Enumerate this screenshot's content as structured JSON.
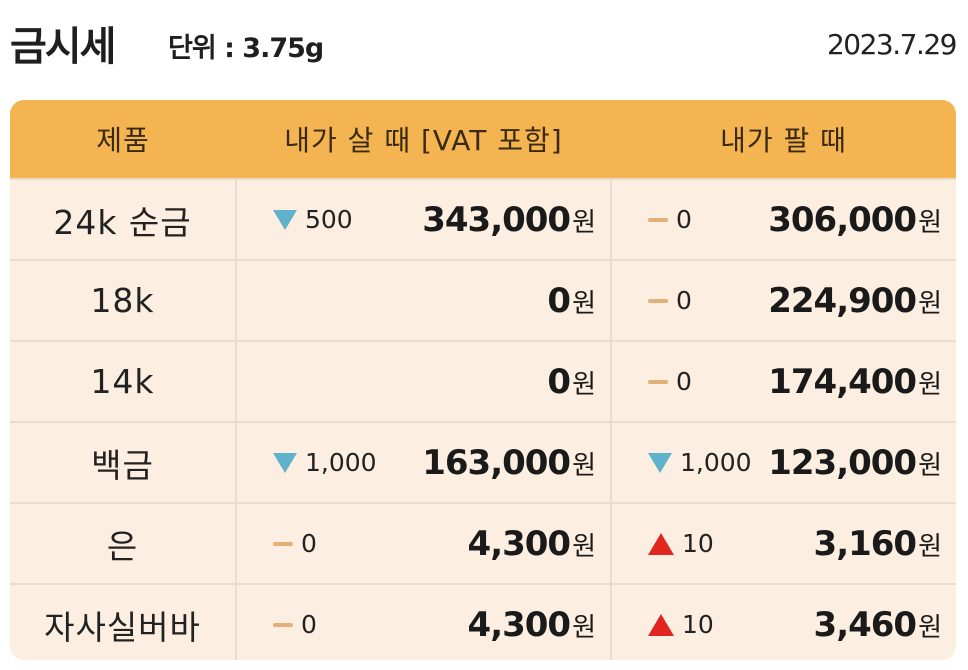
{
  "header": {
    "title": "금시세",
    "unit": "단위 : 3.75g",
    "date": "2023.7.29"
  },
  "table": {
    "columns": [
      "제품",
      "내가 살 때 [VAT 포함]",
      "내가 팔 때"
    ],
    "currency": "원",
    "rows": [
      {
        "name": "24k 순금",
        "buy_dir": "down",
        "buy_change": "500",
        "buy_price": "343,000",
        "sell_dir": "flat",
        "sell_change": "0",
        "sell_price": "306,000"
      },
      {
        "name": "18k",
        "buy_dir": "none",
        "buy_change": "",
        "buy_price": "0",
        "sell_dir": "flat",
        "sell_change": "0",
        "sell_price": "224,900"
      },
      {
        "name": "14k",
        "buy_dir": "none",
        "buy_change": "",
        "buy_price": "0",
        "sell_dir": "flat",
        "sell_change": "0",
        "sell_price": "174,400"
      },
      {
        "name": "백금",
        "buy_dir": "down",
        "buy_change": "1,000",
        "buy_price": "163,000",
        "sell_dir": "down",
        "sell_change": "1,000",
        "sell_price": "123,000"
      },
      {
        "name": "은",
        "buy_dir": "flat",
        "buy_change": "0",
        "buy_price": "4,300",
        "sell_dir": "up",
        "sell_change": "10",
        "sell_price": "3,160"
      },
      {
        "name": "자사실버바",
        "buy_dir": "flat",
        "buy_change": "0",
        "buy_price": "4,300",
        "sell_dir": "up",
        "sell_change": "10",
        "sell_price": "3,460"
      }
    ]
  },
  "colors": {
    "header_bg": "#f3b451",
    "row_bg": "#fceee0",
    "down": "#5fb2cc",
    "up": "#e0261e",
    "flat": "#e4b079"
  }
}
